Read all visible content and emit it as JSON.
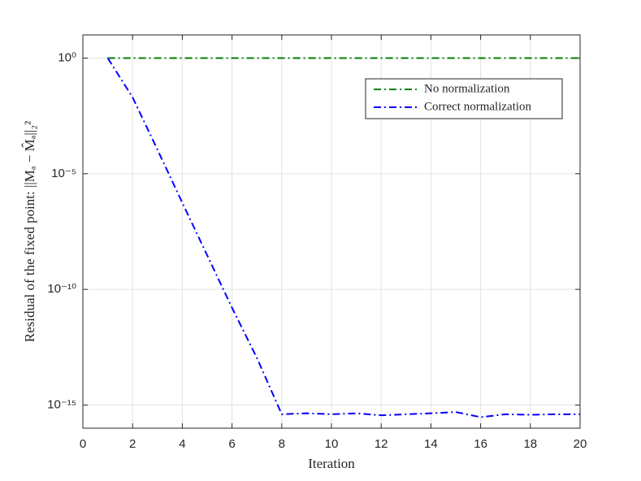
{
  "chart_data": {
    "type": "line",
    "x_label": "Iteration",
    "y_label": "Residual of the fixed point: ||Mₐ − M̂ₐ||₂²",
    "x": [
      1,
      2,
      3,
      4,
      5,
      6,
      7,
      8,
      9,
      10,
      11,
      12,
      13,
      14,
      15,
      16,
      17,
      18,
      19,
      20
    ],
    "series": [
      {
        "name": "No normalization",
        "color": "#008000",
        "values": [
          1,
          1,
          1,
          1,
          1,
          1,
          1,
          1,
          1,
          1,
          1,
          1,
          1,
          1,
          1,
          1,
          1,
          1,
          1,
          1
        ]
      },
      {
        "name": "Correct normalization",
        "color": "#0000ff",
        "values": [
          1,
          0.02,
          0.00011,
          5.6e-07,
          3e-09,
          1.6e-11,
          1.1e-13,
          4e-16,
          4.4e-16,
          4e-16,
          4.4e-16,
          3.6e-16,
          4e-16,
          4.4e-16,
          5e-16,
          3e-16,
          4e-16,
          3.8e-16,
          4e-16,
          4e-16
        ]
      }
    ],
    "xlim": [
      0,
      20
    ],
    "xticks": [
      0,
      2,
      4,
      6,
      8,
      10,
      12,
      14,
      16,
      18,
      20
    ],
    "ylim": [
      1e-16,
      10
    ],
    "yticks": [
      {
        "value": 1e-15,
        "label": "10⁻¹⁵"
      },
      {
        "value": 1e-10,
        "label": "10⁻¹⁰"
      },
      {
        "value": 1e-05,
        "label": "10⁻⁵"
      },
      {
        "value": 1,
        "label": "10⁰"
      }
    ],
    "y_log": true,
    "grid": true,
    "legend": "upper-right"
  }
}
